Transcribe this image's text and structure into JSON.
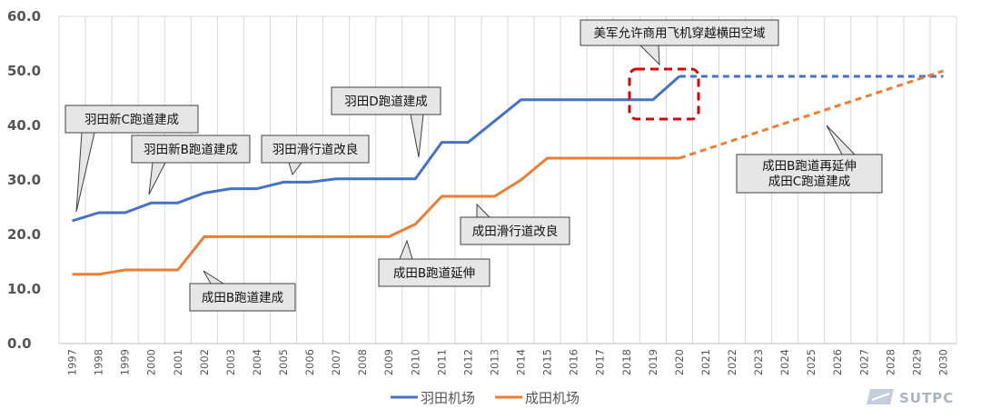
{
  "chart_data": {
    "type": "line",
    "x": [
      1997,
      1998,
      1999,
      2000,
      2001,
      2002,
      2003,
      2004,
      2005,
      2006,
      2007,
      2008,
      2009,
      2010,
      2011,
      2012,
      2013,
      2014,
      2015,
      2016,
      2017,
      2018,
      2019,
      2020,
      2021,
      2022,
      2023,
      2024,
      2025,
      2026,
      2027,
      2028,
      2029,
      2030
    ],
    "ylim": [
      0,
      60
    ],
    "yticks": [
      "0.0",
      "10.0",
      "20.0",
      "30.0",
      "40.0",
      "50.0",
      "60.0"
    ],
    "grid": "vertical",
    "legend_position": "bottom",
    "series": [
      {
        "name": "羽田机场",
        "color": "#4472c4",
        "actual_x": [
          1997,
          1998,
          1999,
          2000,
          2001,
          2002,
          2003,
          2004,
          2005,
          2006,
          2007,
          2008,
          2009,
          2010,
          2011,
          2012,
          2013,
          2014,
          2015,
          2016,
          2017,
          2018,
          2019,
          2020
        ],
        "actual_values": [
          22.5,
          24,
          24,
          25.8,
          25.8,
          27.6,
          28.4,
          28.4,
          29.6,
          29.6,
          30.2,
          30.2,
          30.2,
          30.2,
          36.9,
          36.9,
          40.8,
          44.7,
          44.7,
          44.7,
          44.7,
          44.7,
          44.7,
          49
        ],
        "plan_x": [
          2020,
          2030
        ],
        "plan_values": [
          49,
          49
        ]
      },
      {
        "name": "成田机场",
        "color": "#ed7d31",
        "actual_x": [
          1997,
          1998,
          1999,
          2000,
          2001,
          2002,
          2003,
          2004,
          2005,
          2006,
          2007,
          2008,
          2009,
          2010,
          2011,
          2012,
          2013,
          2014,
          2015,
          2016,
          2017,
          2018,
          2019,
          2020
        ],
        "actual_values": [
          12.7,
          12.7,
          13.5,
          13.5,
          13.5,
          19.6,
          19.6,
          19.6,
          19.6,
          19.6,
          19.6,
          19.6,
          19.6,
          21.9,
          27,
          27,
          27,
          30,
          34,
          34,
          34,
          34,
          34,
          34
        ],
        "plan_x": [
          2020,
          2030
        ],
        "plan_values": [
          34,
          50
        ]
      }
    ],
    "annotations": [
      "羽田新C跑道建成",
      "羽田新B跑道建成",
      "羽田滑行道改良",
      "羽田D跑道建成",
      "成田B跑道建成",
      "成田B跑道延伸",
      "成田滑行道改良",
      "成田B跑道再延伸\n成田C跑道建成",
      "美军允许商用飞机穿越横田空域"
    ]
  },
  "watermark": "SUTPC",
  "highlight_color": "#e00000"
}
